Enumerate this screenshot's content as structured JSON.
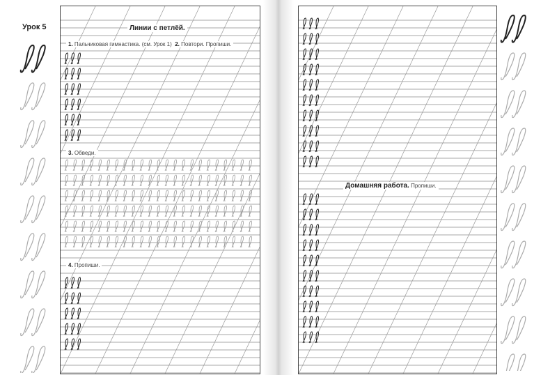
{
  "left_page": {
    "lesson": "Урок 5",
    "title": "Линии с петлёй.",
    "task1_num": "1.",
    "task1_text": "Пальчиковая гимнастика. (см. Урок 1)",
    "task2_num": "2.",
    "task2_text": "Повтори. Пропиши.",
    "task3_num": "3.",
    "task3_text": "Обведи.",
    "task4_num": "4.",
    "task4_text": "Пропиши."
  },
  "right_page": {
    "homework_title": "Домашняя работа.",
    "homework_text": "Пропиши."
  },
  "colors": {
    "ink": "#222222",
    "rule": "#888888",
    "trace": "#9a9a9a"
  },
  "margin_glyph": "loop-letter-pair"
}
